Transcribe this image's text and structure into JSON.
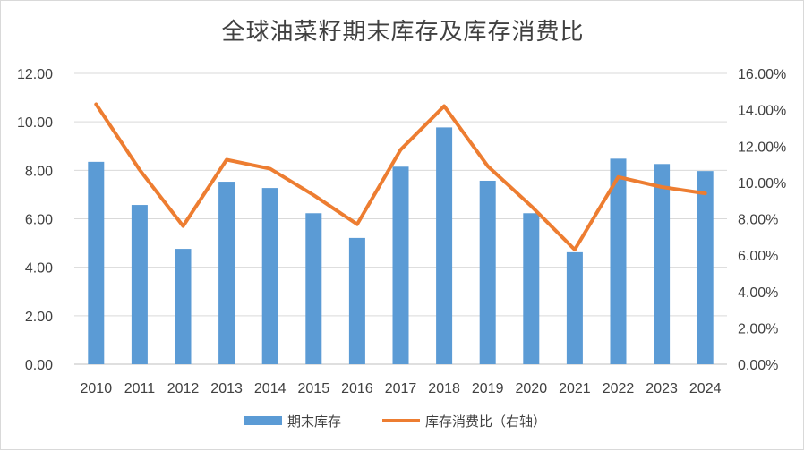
{
  "chart_data": {
    "type": "bar",
    "title": "全球油菜籽期末库存及库存消费比",
    "categories": [
      "2010",
      "2011",
      "2012",
      "2013",
      "2014",
      "2015",
      "2016",
      "2017",
      "2018",
      "2019",
      "2020",
      "2021",
      "2022",
      "2023",
      "2024"
    ],
    "series": [
      {
        "name": "期末库存",
        "type": "bar",
        "axis": "left",
        "color": "#5b9bd5",
        "values": [
          8.35,
          6.57,
          4.76,
          7.53,
          7.27,
          6.23,
          5.21,
          8.15,
          9.77,
          7.57,
          6.23,
          4.62,
          8.48,
          8.26,
          7.97
        ]
      },
      {
        "name": "库存消费比（右轴）",
        "type": "line",
        "axis": "right",
        "color": "#ed7d31",
        "values": [
          14.3,
          10.7,
          7.6,
          11.25,
          10.75,
          9.3,
          7.7,
          11.8,
          14.2,
          10.9,
          8.7,
          6.3,
          10.3,
          9.75,
          9.4
        ]
      }
    ],
    "y_left": {
      "min": 0,
      "max": 12,
      "step": 2,
      "ticks": [
        "0.00",
        "2.00",
        "4.00",
        "6.00",
        "8.00",
        "10.00",
        "12.00"
      ]
    },
    "y_right": {
      "min": 0,
      "max": 16,
      "step": 2,
      "ticks": [
        "0.00%",
        "2.00%",
        "4.00%",
        "6.00%",
        "8.00%",
        "10.00%",
        "12.00%",
        "14.00%",
        "16.00%"
      ]
    },
    "grid": true,
    "legend_position": "bottom"
  }
}
